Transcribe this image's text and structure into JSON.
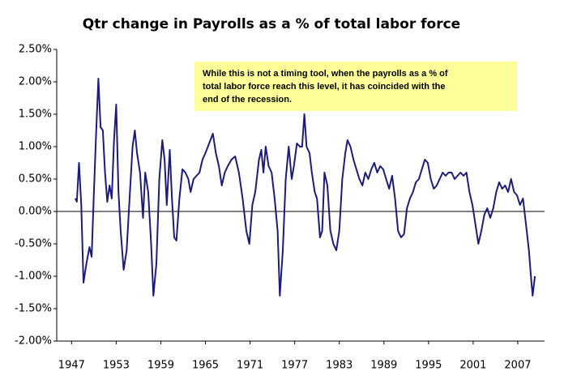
{
  "chart_data": {
    "type": "line",
    "title": "Qtr change in Payrolls as a % of total labor force",
    "annotation": [
      "While this is not a timing tool, when the payrolls as a % of",
      "total labor force reach this level, it has coincided with the",
      "end of the recession."
    ],
    "x": [
      1947.5,
      1947.7,
      1948.0,
      1948.3,
      1948.6,
      1949.0,
      1949.4,
      1949.7,
      1950.0,
      1950.3,
      1950.6,
      1950.9,
      1951.2,
      1951.5,
      1951.8,
      1952.1,
      1952.4,
      1952.7,
      1953.0,
      1953.3,
      1953.6,
      1954.0,
      1954.4,
      1954.8,
      1955.2,
      1955.5,
      1955.8,
      1956.2,
      1956.6,
      1956.9,
      1957.3,
      1957.7,
      1958.0,
      1958.4,
      1958.8,
      1959.2,
      1959.5,
      1959.8,
      1960.2,
      1960.5,
      1960.8,
      1961.1,
      1961.5,
      1961.9,
      1962.3,
      1962.7,
      1963.0,
      1963.4,
      1963.8,
      1964.2,
      1964.6,
      1965.0,
      1965.5,
      1966.0,
      1966.4,
      1966.8,
      1967.2,
      1967.6,
      1968.0,
      1968.5,
      1969.0,
      1969.5,
      1970.0,
      1970.5,
      1970.9,
      1971.3,
      1971.7,
      1972.2,
      1972.5,
      1972.8,
      1973.1,
      1973.5,
      1973.9,
      1974.3,
      1974.7,
      1975.0,
      1975.4,
      1975.8,
      1976.2,
      1976.6,
      1976.9,
      1977.3,
      1977.7,
      1978.0,
      1978.3,
      1978.6,
      1979.0,
      1979.3,
      1979.7,
      1980.0,
      1980.4,
      1980.7,
      1981.0,
      1981.4,
      1981.8,
      1982.2,
      1982.6,
      1983.0,
      1983.4,
      1983.8,
      1984.1,
      1984.5,
      1984.9,
      1985.3,
      1985.7,
      1986.1,
      1986.5,
      1986.9,
      1987.3,
      1987.7,
      1988.1,
      1988.5,
      1988.9,
      1989.3,
      1989.7,
      1990.1,
      1990.5,
      1990.9,
      1991.3,
      1991.7,
      1992.1,
      1992.5,
      1992.9,
      1993.3,
      1993.7,
      1994.1,
      1994.5,
      1994.9,
      1995.3,
      1995.7,
      1996.1,
      1996.5,
      1996.9,
      1997.3,
      1997.7,
      1998.1,
      1998.5,
      1998.9,
      1999.3,
      1999.7,
      2000.1,
      2000.5,
      2000.9,
      2001.3,
      2001.7,
      2002.1,
      2002.5,
      2002.9,
      2003.3,
      2003.7,
      2004.1,
      2004.5,
      2004.9,
      2005.3,
      2005.7,
      2006.1,
      2006.5,
      2006.9,
      2007.3,
      2007.7,
      2008.1,
      2008.5,
      2008.8,
      2009.0,
      2009.3
    ],
    "series": [
      {
        "color": "#1c1c78",
        "values": [
          0.2,
          0.15,
          0.75,
          0.1,
          -1.1,
          -0.8,
          -0.55,
          -0.7,
          0.3,
          1.2,
          2.05,
          1.3,
          1.25,
          0.6,
          0.15,
          0.4,
          0.2,
          1.1,
          1.65,
          0.3,
          -0.3,
          -0.9,
          -0.6,
          0.2,
          1.0,
          1.25,
          0.9,
          0.6,
          -0.1,
          0.6,
          0.3,
          -0.5,
          -1.3,
          -0.8,
          0.5,
          1.1,
          0.8,
          0.1,
          0.95,
          0.2,
          -0.4,
          -0.45,
          0.2,
          0.65,
          0.6,
          0.5,
          0.3,
          0.5,
          0.55,
          0.6,
          0.8,
          0.9,
          1.05,
          1.2,
          0.9,
          0.7,
          0.4,
          0.6,
          0.7,
          0.8,
          0.85,
          0.6,
          0.2,
          -0.3,
          -0.5,
          0.1,
          0.3,
          0.8,
          0.95,
          0.6,
          1.0,
          0.7,
          0.6,
          0.2,
          -0.3,
          -1.3,
          -0.6,
          0.5,
          1.0,
          0.5,
          0.7,
          1.05,
          1.0,
          1.0,
          1.5,
          1.0,
          0.9,
          0.6,
          0.3,
          0.2,
          -0.4,
          -0.3,
          0.6,
          0.4,
          -0.3,
          -0.5,
          -0.6,
          -0.3,
          0.5,
          0.9,
          1.1,
          1.0,
          0.8,
          0.65,
          0.5,
          0.4,
          0.6,
          0.5,
          0.65,
          0.75,
          0.6,
          0.7,
          0.65,
          0.5,
          0.35,
          0.55,
          0.2,
          -0.3,
          -0.4,
          -0.35,
          0.05,
          0.2,
          0.3,
          0.45,
          0.5,
          0.65,
          0.8,
          0.75,
          0.5,
          0.35,
          0.4,
          0.5,
          0.6,
          0.55,
          0.6,
          0.6,
          0.5,
          0.55,
          0.6,
          0.55,
          0.6,
          0.3,
          0.1,
          -0.2,
          -0.5,
          -0.3,
          -0.05,
          0.05,
          -0.1,
          0.05,
          0.3,
          0.45,
          0.35,
          0.4,
          0.3,
          0.5,
          0.3,
          0.25,
          0.1,
          0.2,
          -0.2,
          -0.6,
          -1.05,
          -1.3,
          -1.0
        ]
      }
    ],
    "xlim": [
      1945,
      2010.6
    ],
    "xticks": [
      1947,
      1953,
      1959,
      1965,
      1971,
      1977,
      1983,
      1989,
      1995,
      2001,
      2007
    ],
    "ylim": [
      -2.0,
      2.5
    ],
    "yticks": [
      {
        "value": -2.0,
        "label": "-2.00%"
      },
      {
        "value": -1.5,
        "label": "-1.50%"
      },
      {
        "value": -1.0,
        "label": "-1.00%"
      },
      {
        "value": -0.5,
        "label": "-0.50%"
      },
      {
        "value": 0.0,
        "label": "0.00%"
      },
      {
        "value": 0.5,
        "label": "0.50%"
      },
      {
        "value": 1.0,
        "label": "1.00%"
      },
      {
        "value": 1.5,
        "label": "1.50%"
      },
      {
        "value": 2.0,
        "label": "2.00%"
      },
      {
        "value": 2.5,
        "label": "2.50%"
      }
    ],
    "grid": false
  }
}
